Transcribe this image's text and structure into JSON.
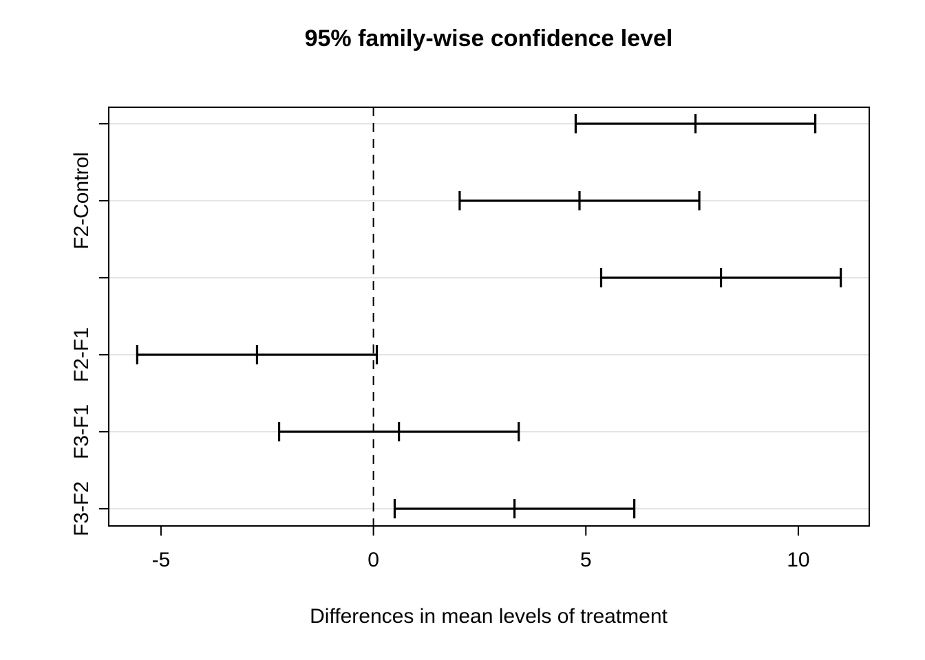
{
  "figure": {
    "title": "95% family-wise confidence level",
    "xlabel": "Differences in mean levels of treatment"
  },
  "chart_data": {
    "type": "errorbar",
    "orientation": "horizontal",
    "title": "95% family-wise confidence level",
    "xlabel": "Differences in mean levels of treatment",
    "ylabel": "",
    "xlim": [
      -6.23,
      11.67
    ],
    "x_ticks": [
      -5,
      0,
      5,
      10
    ],
    "reference_line": {
      "x": 0,
      "style": "dashed",
      "color": "#000000"
    },
    "grid": {
      "per_row_horizontal_lines": true,
      "color": "#e4e4e4"
    },
    "legend": "none",
    "rows": [
      {
        "axis_label": "",
        "lwr": 4.76,
        "diff": 7.58,
        "upr": 10.4
      },
      {
        "axis_label": "F2-Control",
        "lwr": 2.03,
        "diff": 4.85,
        "upr": 7.67
      },
      {
        "axis_label": "",
        "lwr": 5.36,
        "diff": 8.18,
        "upr": 11.0
      },
      {
        "axis_label": "F2-F1",
        "lwr": -5.56,
        "diff": -2.74,
        "upr": 0.08
      },
      {
        "axis_label": "F3-F1",
        "lwr": -2.22,
        "diff": 0.6,
        "upr": 3.42
      },
      {
        "axis_label": "F3-F2",
        "lwr": 0.5,
        "diff": 3.32,
        "upr": 6.14
      }
    ],
    "colors": {
      "interval": "#000000",
      "axis": "#000000",
      "grid": "#e4e4e4",
      "background": "#ffffff"
    }
  }
}
